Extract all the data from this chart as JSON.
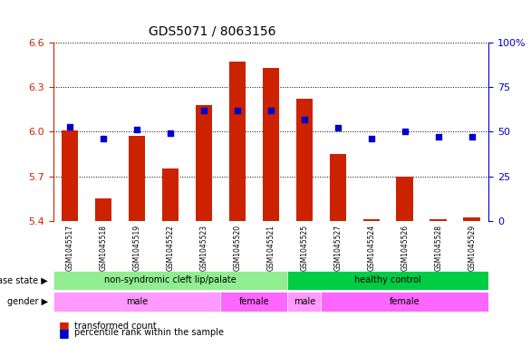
{
  "title": "GDS5071 / 8063156",
  "samples": [
    "GSM1045517",
    "GSM1045518",
    "GSM1045519",
    "GSM1045522",
    "GSM1045523",
    "GSM1045520",
    "GSM1045521",
    "GSM1045525",
    "GSM1045527",
    "GSM1045524",
    "GSM1045526",
    "GSM1045528",
    "GSM1045529"
  ],
  "transformed_count": [
    6.01,
    5.55,
    5.97,
    5.75,
    6.18,
    6.47,
    6.43,
    6.22,
    5.85,
    5.41,
    5.7,
    5.41,
    5.42
  ],
  "percentile_rank": [
    53,
    46,
    51,
    49,
    62,
    62,
    62,
    57,
    52,
    46,
    50,
    47,
    47
  ],
  "ymin": 5.4,
  "ymax": 6.6,
  "yticks": [
    5.4,
    5.7,
    6.0,
    6.3,
    6.6
  ],
  "right_yticks": [
    0,
    25,
    50,
    75,
    100
  ],
  "disease_state": [
    {
      "label": "non-syndromic cleft lip/palate",
      "start": 0,
      "end": 7,
      "color": "#90EE90"
    },
    {
      "label": "healthy control",
      "start": 7,
      "end": 13,
      "color": "#00CC44"
    }
  ],
  "gender": [
    {
      "label": "male",
      "start": 0,
      "end": 5,
      "color": "#FF99FF"
    },
    {
      "label": "female",
      "start": 5,
      "end": 7,
      "color": "#FF66FF"
    },
    {
      "label": "male",
      "start": 7,
      "end": 8,
      "color": "#FF99FF"
    },
    {
      "label": "female",
      "start": 8,
      "end": 13,
      "color": "#FF66FF"
    }
  ],
  "bar_color": "#CC2200",
  "dot_color": "#0000CC",
  "bg_color": "#F0F0F0",
  "label_color_left": "#CC2200",
  "label_color_right": "#0000CC",
  "legend_items": [
    "transformed count",
    "percentile rank within the sample"
  ],
  "disease_state_label": "disease state",
  "gender_label": "gender"
}
